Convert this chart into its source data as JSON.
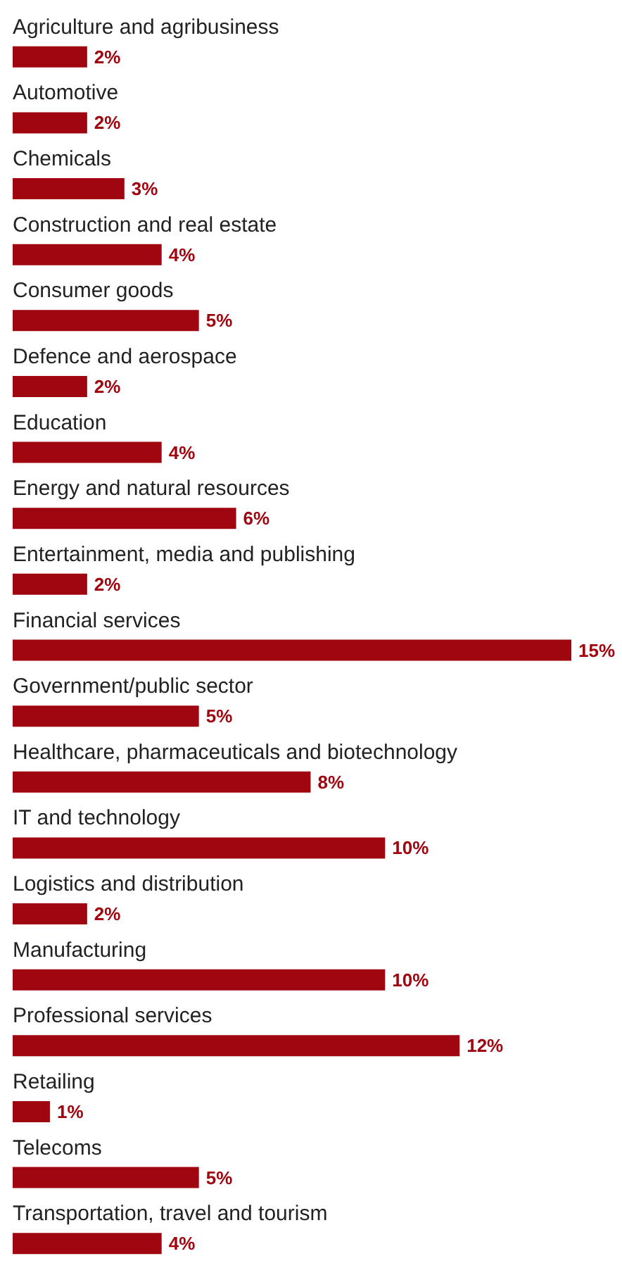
{
  "chart_data": {
    "type": "bar",
    "orientation": "horizontal",
    "color": "#a0060f",
    "value_labels": [
      "2%",
      "2%",
      "3%",
      "4%",
      "5%",
      "2%",
      "4%",
      "6%",
      "2%",
      "15%",
      "5%",
      "8%",
      "10%",
      "2%",
      "10%",
      "12%",
      "1%",
      "5%",
      "4%"
    ],
    "categories": [
      "Agriculture and agribusiness",
      "Automotive",
      "Chemicals",
      "Construction and real estate",
      "Consumer goods",
      "Defence and aerospace",
      "Education",
      "Energy and natural resources",
      "Entertainment, media and publishing",
      "Financial services",
      "Government/public sector",
      "Healthcare, pharmaceuticals and biotechnology",
      "IT and technology",
      "Logistics and distribution",
      "Manufacturing",
      "Professional services",
      "Retailing",
      "Telecoms",
      "Transportation, travel and tourism"
    ],
    "values": [
      2,
      2,
      3,
      4,
      5,
      2,
      4,
      6,
      2,
      15,
      5,
      8,
      10,
      2,
      10,
      12,
      1,
      5,
      4
    ]
  }
}
